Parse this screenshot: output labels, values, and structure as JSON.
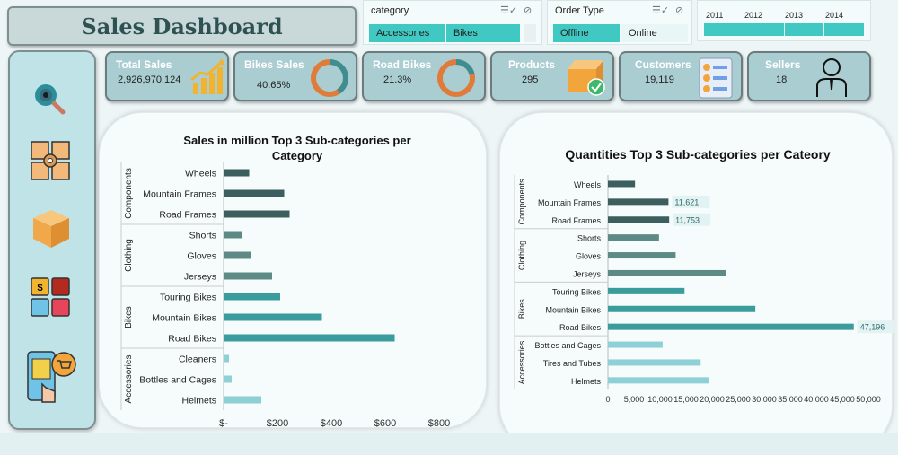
{
  "dashboard_title": "Sales Dashboard",
  "slicers": {
    "category": {
      "label": "category",
      "options": [
        {
          "label": "Accessories",
          "selected": true
        },
        {
          "label": "Bikes",
          "selected": true
        }
      ]
    },
    "order_type": {
      "label": "Order Type",
      "options": [
        {
          "label": "Offline",
          "selected": true
        },
        {
          "label": "Online",
          "selected": false
        }
      ]
    },
    "years": [
      "2011",
      "2012",
      "2013",
      "2014"
    ]
  },
  "kpis": {
    "total_sales": {
      "title": "Total Sales",
      "value": "2,926,970,124"
    },
    "bikes_sales": {
      "title": "Bikes Sales",
      "value": "40.65%",
      "fraction": 0.4065
    },
    "road_bikes": {
      "title": "Road Bikes",
      "value": "21.3%",
      "fraction": 0.213
    },
    "products": {
      "title": "Products",
      "value": "295"
    },
    "customers": {
      "title": "Customers",
      "value": "19,119"
    },
    "sellers": {
      "title": "Sellers",
      "value": "18"
    }
  },
  "sidebar_icons": [
    "magnifier-icon",
    "boxes-gear-icon",
    "package-icon",
    "finance-apps-icon",
    "mobile-shopping-icon"
  ],
  "colors": {
    "components": "#3c5e5e",
    "clothing": "#5e8a86",
    "bikes": "#3a9c9c",
    "accessories": "#8ed0d6",
    "accent": "#40c8c2",
    "ring_orange": "#e07b39",
    "ring_teal": "#3e8e91"
  },
  "chart_data": [
    {
      "type": "bar",
      "orientation": "horizontal",
      "title": "Sales in million Top 3 Sub-categories per Category",
      "groups": [
        {
          "name": "Components",
          "categories": [
            "Wheels",
            "Mountain Frames",
            "Road Frames"
          ],
          "values": [
            95,
            225,
            245
          ]
        },
        {
          "name": "Clothing",
          "categories": [
            "Shorts",
            "Gloves",
            "Jerseys"
          ],
          "values": [
            70,
            100,
            180
          ]
        },
        {
          "name": "Bikes",
          "categories": [
            "Touring Bikes",
            "Mountain Bikes",
            "Road Bikes"
          ],
          "values": [
            210,
            365,
            635
          ]
        },
        {
          "name": "Accessories",
          "categories": [
            "Cleaners",
            "Bottles and Cages",
            "Helmets"
          ],
          "values": [
            20,
            30,
            140
          ]
        }
      ],
      "xlim": [
        0,
        800
      ],
      "xticks": [
        "$-",
        "$200",
        "$400",
        "$600",
        "$800"
      ],
      "xtick_values": [
        0,
        200,
        400,
        600,
        800
      ]
    },
    {
      "type": "bar",
      "orientation": "horizontal",
      "title": "Quantities Top 3 Sub-categories per Cateory",
      "groups": [
        {
          "name": "Components",
          "categories": [
            "Wheels",
            "Mountain Frames",
            "Road Frames"
          ],
          "values": [
            5200,
            11621,
            11753
          ],
          "labels": [
            "",
            "11,621",
            "11,753"
          ]
        },
        {
          "name": "Clothing",
          "categories": [
            "Shorts",
            "Gloves",
            "Jerseys"
          ],
          "values": [
            9800,
            13000,
            22600
          ],
          "labels": [
            "",
            "",
            ""
          ]
        },
        {
          "name": "Bikes",
          "categories": [
            "Touring Bikes",
            "Mountain Bikes",
            "Road Bikes"
          ],
          "values": [
            14700,
            28300,
            47196
          ],
          "labels": [
            "",
            "",
            "47,196"
          ]
        },
        {
          "name": "Accessories",
          "categories": [
            "Bottles and Cages",
            "Tires and Tubes",
            "Helmets"
          ],
          "values": [
            10500,
            17800,
            19300
          ],
          "labels": [
            "",
            "",
            ""
          ]
        }
      ],
      "xlim": [
        0,
        50000
      ],
      "xticks": [
        "0",
        "5,000",
        "10,000",
        "15,000",
        "20,000",
        "25,000",
        "30,000",
        "35,000",
        "40,000",
        "45,000",
        "50,000"
      ],
      "xtick_values": [
        0,
        5000,
        10000,
        15000,
        20000,
        25000,
        30000,
        35000,
        40000,
        45000,
        50000
      ]
    }
  ]
}
